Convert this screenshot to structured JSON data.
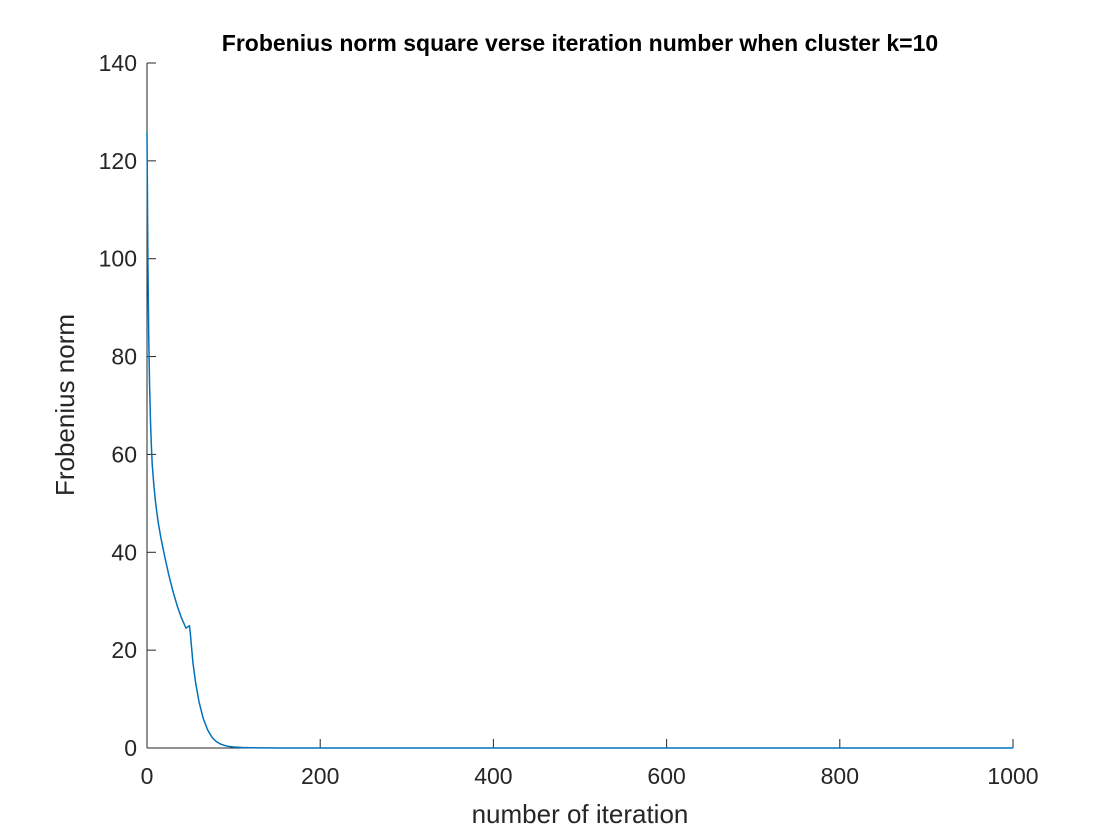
{
  "chart_data": {
    "type": "line",
    "title": "Frobenius norm square verse iteration number when cluster k=10",
    "xlabel": "number of iteration",
    "ylabel": "Frobenius norm",
    "xlim": [
      0,
      1000
    ],
    "ylim": [
      0,
      140
    ],
    "xticks": [
      0,
      200,
      400,
      600,
      800,
      1000
    ],
    "yticks": [
      0,
      20,
      40,
      60,
      80,
      100,
      120,
      140
    ],
    "xtick_labels": [
      "0",
      "200",
      "400",
      "600",
      "800",
      "1000"
    ],
    "ytick_labels": [
      "0",
      "20",
      "40",
      "60",
      "80",
      "100",
      "120",
      "140"
    ],
    "grid": false,
    "line_color": "#0072BD",
    "series": [
      {
        "x": [
          0,
          1,
          2,
          3,
          4,
          5,
          6,
          8,
          10,
          13,
          16,
          20,
          25,
          30,
          35,
          40,
          45,
          49,
          50,
          51,
          53,
          56,
          60,
          65,
          70,
          75,
          80,
          85,
          90,
          95,
          100,
          110,
          120,
          130,
          140,
          150,
          175,
          200,
          250,
          300,
          400,
          500,
          600,
          700,
          800,
          900,
          1000
        ],
        "y": [
          126,
          100,
          84,
          74,
          67,
          62,
          58,
          53.5,
          50,
          46,
          43,
          39.5,
          35.5,
          32,
          29,
          26.5,
          24.5,
          25,
          23.5,
          21.5,
          17.5,
          13.5,
          9.5,
          6,
          3.7,
          2.2,
          1.3,
          0.8,
          0.5,
          0.3,
          0.2,
          0.1,
          0.05,
          0.03,
          0.02,
          0.01,
          0,
          0,
          0,
          0,
          0,
          0,
          0,
          0,
          0,
          0,
          0
        ]
      }
    ]
  }
}
